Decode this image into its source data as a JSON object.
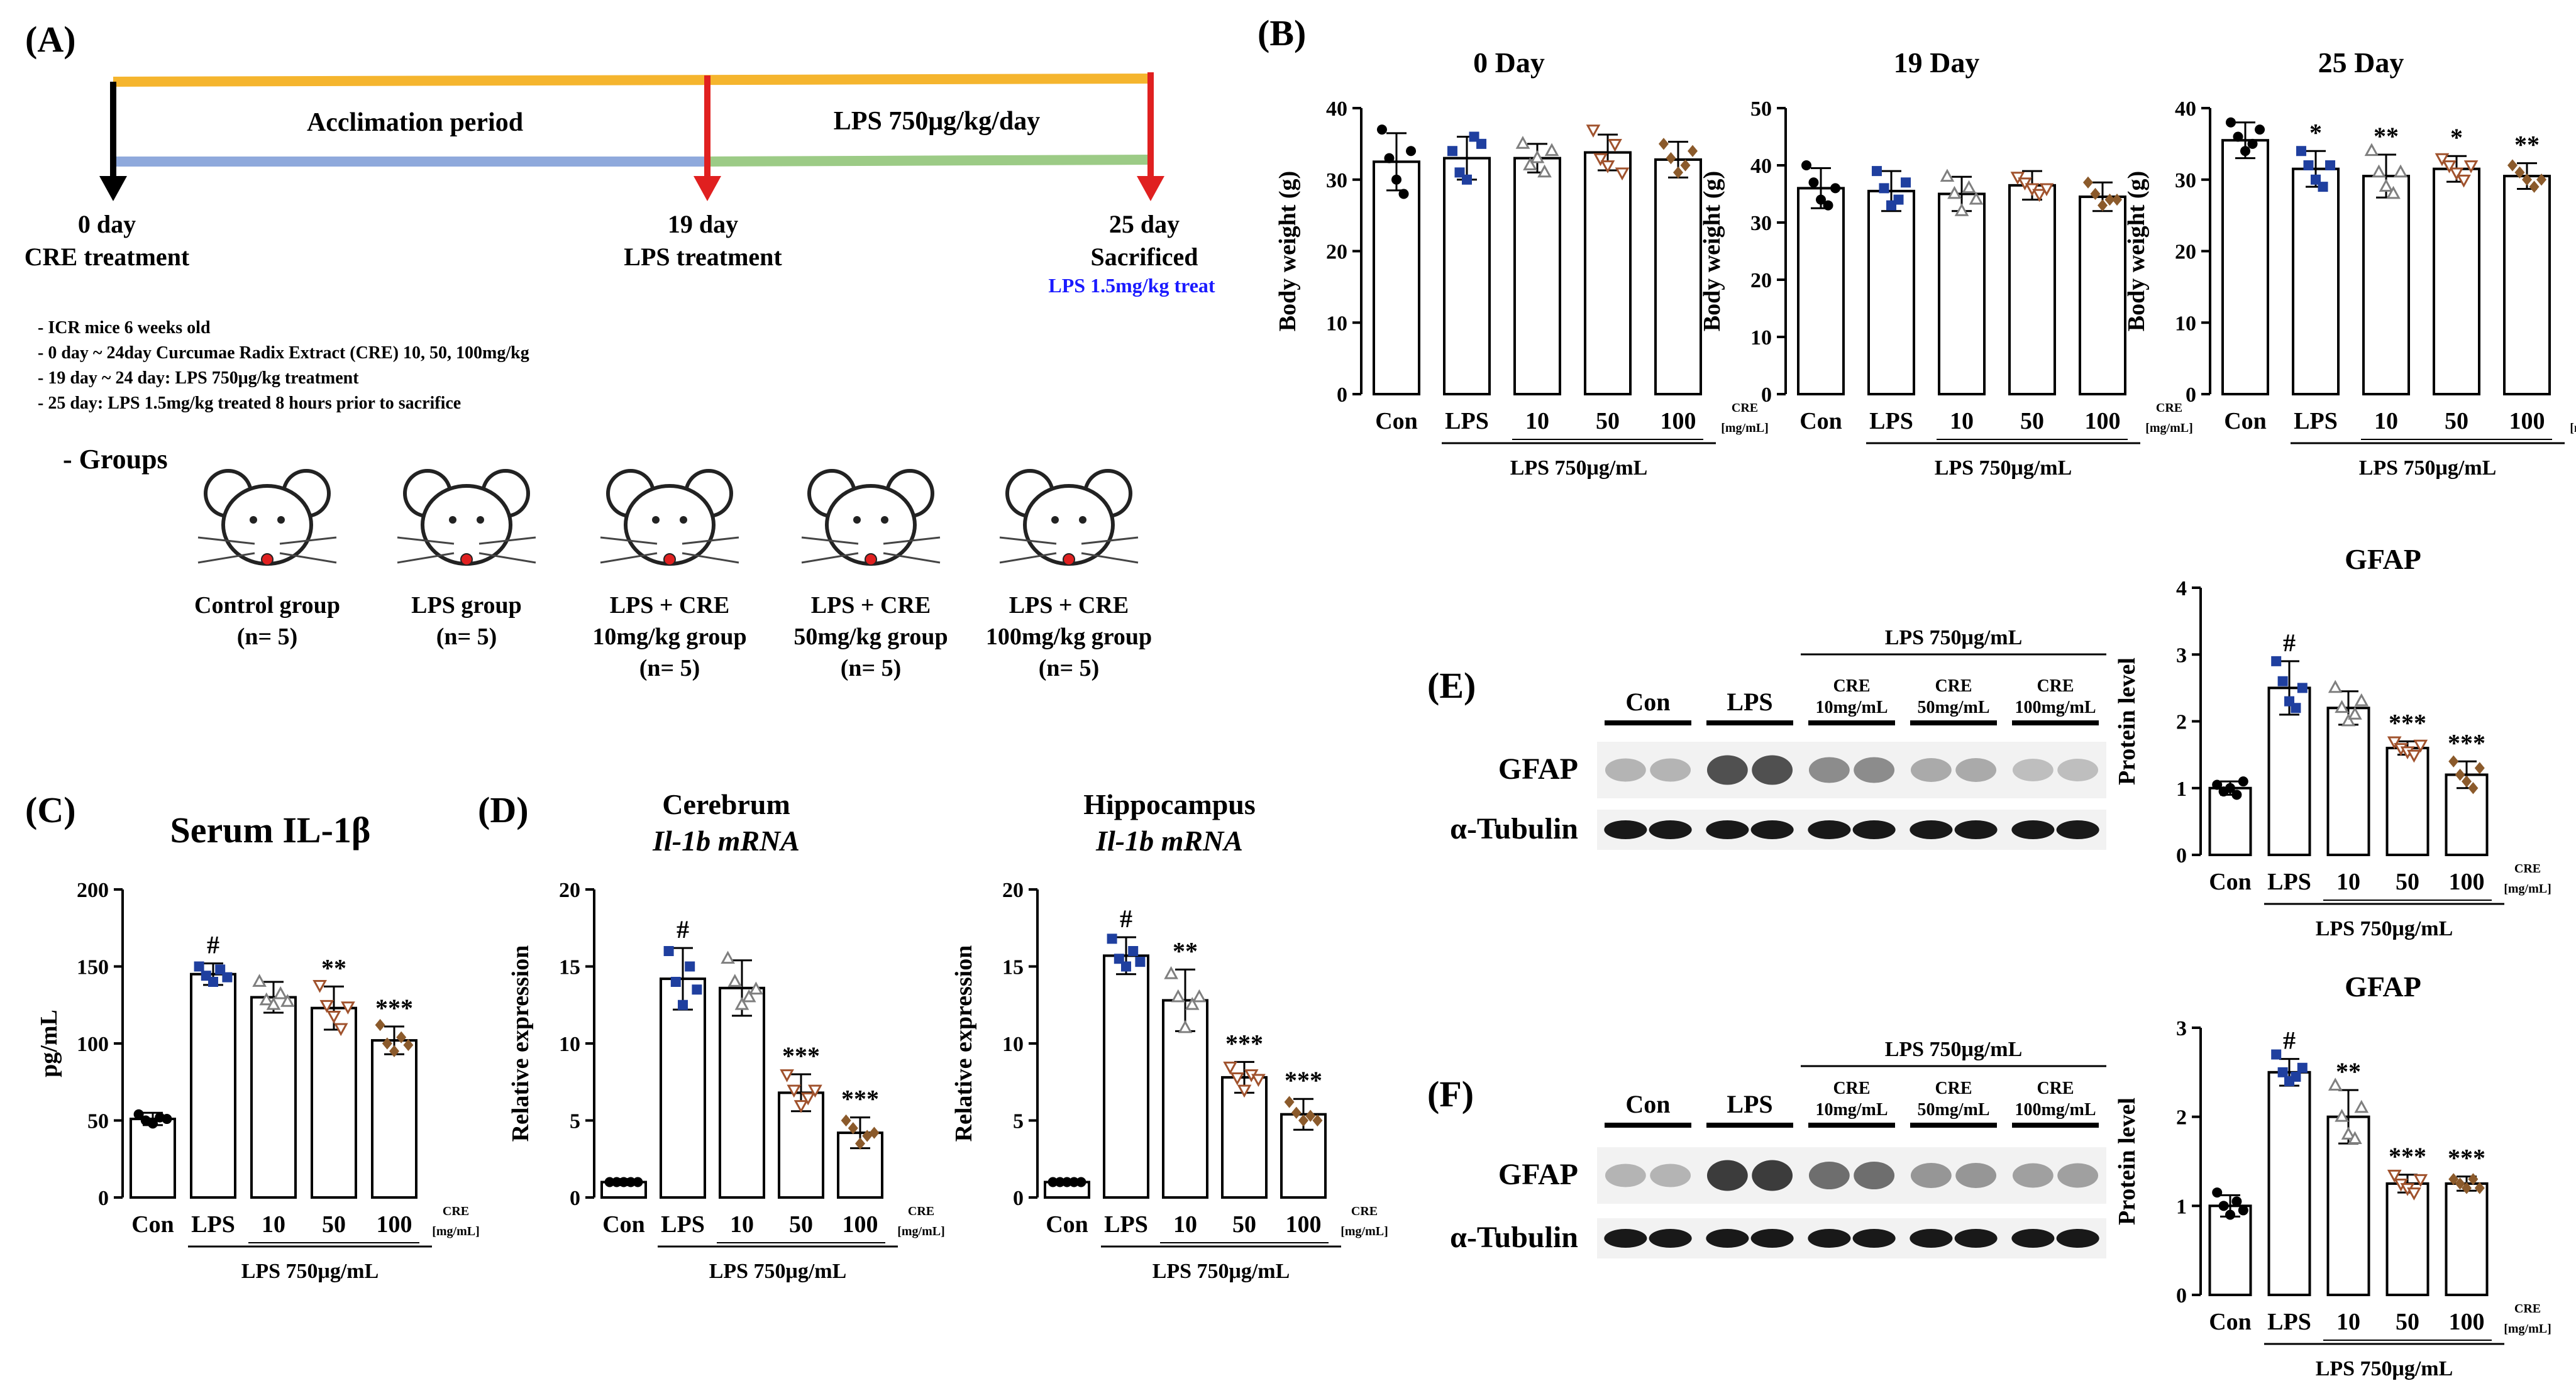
{
  "panel_labels": {
    "A": "(A)",
    "B": "(B)",
    "C": "(C)",
    "D": "(D)",
    "E": "(E)",
    "F": "(F)"
  },
  "timeline": {
    "acclimation": "Acclimation period",
    "lps_period": "LPS 750μg/kg/day",
    "milestones": [
      {
        "day": "0 day",
        "label": "CRE treatment"
      },
      {
        "day": "19 day",
        "label": "LPS treatment"
      },
      {
        "day": "25 day",
        "label": "Sacrificed",
        "note": "LPS 1.5mg/kg treat"
      }
    ],
    "colors": {
      "top_bar": "#f5b52e",
      "lower_left": "#8fa9dc",
      "lower_right": "#9ccb86",
      "day0": "#000000",
      "arrow_red": "#e02020",
      "note": "#1a1aff"
    }
  },
  "protocol_notes": [
    "- ICR mice 6 weeks old",
    "- 0 day ~ 24day Curcumae Radix Extract (CRE) 10, 50, 100mg/kg",
    "- 19 day ~ 24 day: LPS 750μg/kg treatment",
    "- 25 day: LPS 1.5mg/kg treated 8 hours prior to sacrifice"
  ],
  "groups": {
    "title": "- Groups",
    "items": [
      {
        "name": "Control group",
        "n": "(n= 5)"
      },
      {
        "name": "LPS group",
        "n": "(n= 5)"
      },
      {
        "name": "LPS + CRE",
        "dose": "10mg/kg group",
        "n": "(n= 5)"
      },
      {
        "name": "LPS + CRE",
        "dose": "50mg/kg group",
        "n": "(n= 5)"
      },
      {
        "name": "LPS + CRE",
        "dose": "100mg/kg group",
        "n": "(n= 5)"
      }
    ]
  },
  "common_axis": {
    "categories": [
      "Con",
      "LPS",
      "10",
      "50",
      "100"
    ],
    "cre_label": "CRE",
    "cre_unit": "[mg/mL]",
    "lps_group_label": "LPS 750μg/mL"
  },
  "group_colors": [
    "#000000",
    "#1f3f9f",
    "#7f7f7f",
    "#a0522d",
    "#8b5a2b"
  ],
  "blots": [
    {
      "panel": "(E)",
      "header": "LPS 750μg/mL",
      "lanes": [
        "Con",
        "LPS",
        "CRE\n10mg/mL",
        "CRE\n50mg/mL",
        "CRE\n100mg/mL"
      ],
      "rows": [
        "GFAP",
        "α-Tubulin"
      ],
      "gfap_intensity": [
        0.25,
        0.75,
        0.45,
        0.3,
        0.2
      ]
    },
    {
      "panel": "(F)",
      "header": "LPS 750μg/mL",
      "lanes": [
        "Con",
        "LPS",
        "CRE\n10mg/mL",
        "CRE\n50mg/mL",
        "CRE\n100mg/mL"
      ],
      "rows": [
        "GFAP",
        "α-Tubulin"
      ],
      "gfap_intensity": [
        0.25,
        0.85,
        0.6,
        0.4,
        0.35
      ]
    }
  ],
  "chart_data": [
    {
      "id": "B0",
      "type": "bar",
      "title": "0 Day",
      "ylabel": "Body weight (g)",
      "ylim": [
        0,
        40
      ],
      "yticks": [
        0,
        10,
        20,
        30,
        40
      ],
      "categories": [
        "Con",
        "LPS",
        "10",
        "50",
        "100"
      ],
      "values": [
        32.5,
        33,
        33,
        33.8,
        32.8
      ],
      "errors": [
        4,
        3,
        2,
        2.5,
        2.5
      ],
      "points": [
        [
          37,
          33,
          30,
          28,
          34
        ],
        [
          34,
          31,
          30,
          36,
          35
        ],
        [
          35,
          32,
          33,
          31,
          34
        ],
        [
          37,
          33,
          32,
          35,
          31
        ],
        [
          35,
          33,
          31,
          32,
          34
        ]
      ],
      "sig": [
        "",
        "",
        "",
        "",
        ""
      ]
    },
    {
      "id": "B1",
      "type": "bar",
      "title": "19 Day",
      "ylabel": "Body weight (g)",
      "ylim": [
        0,
        50
      ],
      "yticks": [
        0,
        10,
        20,
        30,
        40,
        50
      ],
      "categories": [
        "Con",
        "LPS",
        "10",
        "50",
        "100"
      ],
      "values": [
        36,
        35.5,
        35,
        36.5,
        34.5
      ],
      "errors": [
        3.5,
        3.5,
        3,
        2.5,
        2.5
      ],
      "points": [
        [
          40,
          37,
          34,
          33,
          36
        ],
        [
          39,
          36,
          33,
          34,
          37
        ],
        [
          38,
          35,
          32,
          36,
          34
        ],
        [
          38,
          37,
          36,
          35,
          36
        ],
        [
          37,
          35,
          33,
          34,
          34
        ]
      ],
      "sig": [
        "",
        "",
        "",
        "",
        ""
      ]
    },
    {
      "id": "B2",
      "type": "bar",
      "title": "25 Day",
      "ylabel": "Body weight (g)",
      "ylim": [
        0,
        40
      ],
      "yticks": [
        0,
        10,
        20,
        30,
        40
      ],
      "categories": [
        "Con",
        "LPS",
        "10",
        "50",
        "100"
      ],
      "values": [
        35.5,
        31.5,
        30.5,
        31.5,
        30.5
      ],
      "errors": [
        2.5,
        2.5,
        3,
        1.8,
        1.8
      ],
      "points": [
        [
          38,
          36,
          34,
          35,
          37
        ],
        [
          34,
          32,
          30,
          29,
          32
        ],
        [
          34,
          31,
          29,
          28,
          31
        ],
        [
          33,
          32,
          31,
          30,
          32
        ],
        [
          32,
          31,
          30,
          29,
          30
        ]
      ],
      "sig": [
        "",
        "*",
        "**",
        "*",
        "**"
      ]
    },
    {
      "id": "C",
      "type": "bar",
      "title": "Serum IL-1β",
      "ylabel": "pg/mL",
      "ylim": [
        0,
        200
      ],
      "yticks": [
        0,
        50,
        100,
        150,
        200
      ],
      "categories": [
        "Con",
        "LPS",
        "10",
        "50",
        "100"
      ],
      "values": [
        51,
        145,
        130,
        123,
        102
      ],
      "errors": [
        4,
        7,
        10,
        14,
        9
      ],
      "points": [
        [
          54,
          50,
          48,
          52,
          51
        ],
        [
          150,
          144,
          140,
          148,
          143
        ],
        [
          140,
          128,
          125,
          132,
          127
        ],
        [
          138,
          125,
          118,
          110,
          124
        ],
        [
          112,
          100,
          95,
          104,
          99
        ]
      ],
      "sig": [
        "",
        "#",
        "",
        "**",
        "***"
      ]
    },
    {
      "id": "D1",
      "type": "bar",
      "title": "Cerebrum",
      "subtitle": "Il-1b mRNA",
      "ylabel": "Relative expression",
      "ylim": [
        0,
        20
      ],
      "yticks": [
        0,
        5,
        10,
        15,
        20
      ],
      "categories": [
        "Con",
        "LPS",
        "10",
        "50",
        "100"
      ],
      "values": [
        1,
        14.2,
        13.6,
        6.8,
        4.2
      ],
      "errors": [
        0.2,
        2,
        1.8,
        1.2,
        1
      ],
      "points": [
        [
          1,
          1,
          1,
          1,
          1
        ],
        [
          16,
          14,
          12.5,
          15,
          13.5
        ],
        [
          15.5,
          14,
          12.5,
          13,
          13.5
        ],
        [
          8,
          7,
          6,
          6.5,
          7
        ],
        [
          5,
          4.5,
          3.5,
          4,
          4.2
        ]
      ],
      "sig": [
        "",
        "#",
        "",
        "***",
        "***"
      ]
    },
    {
      "id": "D2",
      "type": "bar",
      "title": "Hippocampus",
      "subtitle": "Il-1b mRNA",
      "ylabel": "Relative expression",
      "ylim": [
        0,
        20
      ],
      "yticks": [
        0,
        5,
        10,
        15,
        20
      ],
      "categories": [
        "Con",
        "LPS",
        "10",
        "50",
        "100"
      ],
      "values": [
        1,
        15.7,
        12.8,
        7.8,
        5.4
      ],
      "errors": [
        0.1,
        1.2,
        2,
        1,
        1
      ],
      "points": [
        [
          1,
          1,
          1,
          1,
          1
        ],
        [
          16.8,
          15.5,
          15,
          16,
          15.3
        ],
        [
          14.5,
          13,
          11,
          12.5,
          13
        ],
        [
          8.5,
          7.8,
          7,
          8,
          7.7
        ],
        [
          6.2,
          5.5,
          5,
          5.3,
          5
        ]
      ],
      "sig": [
        "",
        "#",
        "**",
        "***",
        "***"
      ]
    },
    {
      "id": "E",
      "type": "bar",
      "title": "GFAP",
      "ylabel": "Protein level",
      "ylim": [
        0,
        4
      ],
      "yticks": [
        0,
        1,
        2,
        3,
        4
      ],
      "categories": [
        "Con",
        "LPS",
        "10",
        "50",
        "100"
      ],
      "values": [
        1,
        2.5,
        2.2,
        1.6,
        1.2
      ],
      "errors": [
        0.1,
        0.4,
        0.25,
        0.1,
        0.2
      ],
      "points": [
        [
          1.05,
          0.95,
          1,
          0.9,
          1.1
        ],
        [
          2.9,
          2.6,
          2.3,
          2.2,
          2.5
        ],
        [
          2.5,
          2.2,
          2,
          2.1,
          2.3
        ],
        [
          1.7,
          1.6,
          1.55,
          1.5,
          1.65
        ],
        [
          1.4,
          1.2,
          1.1,
          1,
          1.3
        ]
      ],
      "sig": [
        "",
        "#",
        "",
        "***",
        "***"
      ]
    },
    {
      "id": "F",
      "type": "bar",
      "title": "GFAP",
      "ylabel": "Protein level",
      "ylim": [
        0,
        3
      ],
      "yticks": [
        0,
        1,
        2,
        3
      ],
      "categories": [
        "Con",
        "LPS",
        "10",
        "50",
        "100"
      ],
      "values": [
        1,
        2.5,
        2,
        1.25,
        1.25
      ],
      "errors": [
        0.12,
        0.15,
        0.3,
        0.1,
        0.08
      ],
      "points": [
        [
          1.15,
          1,
          0.9,
          1.05,
          0.95
        ],
        [
          2.7,
          2.5,
          2.4,
          2.45,
          2.55
        ],
        [
          2.35,
          2,
          1.8,
          1.75,
          2.1
        ],
        [
          1.35,
          1.25,
          1.2,
          1.15,
          1.3
        ],
        [
          1.3,
          1.25,
          1.2,
          1.3,
          1.2
        ]
      ],
      "sig": [
        "",
        "#",
        "**",
        "***",
        "***"
      ]
    }
  ]
}
